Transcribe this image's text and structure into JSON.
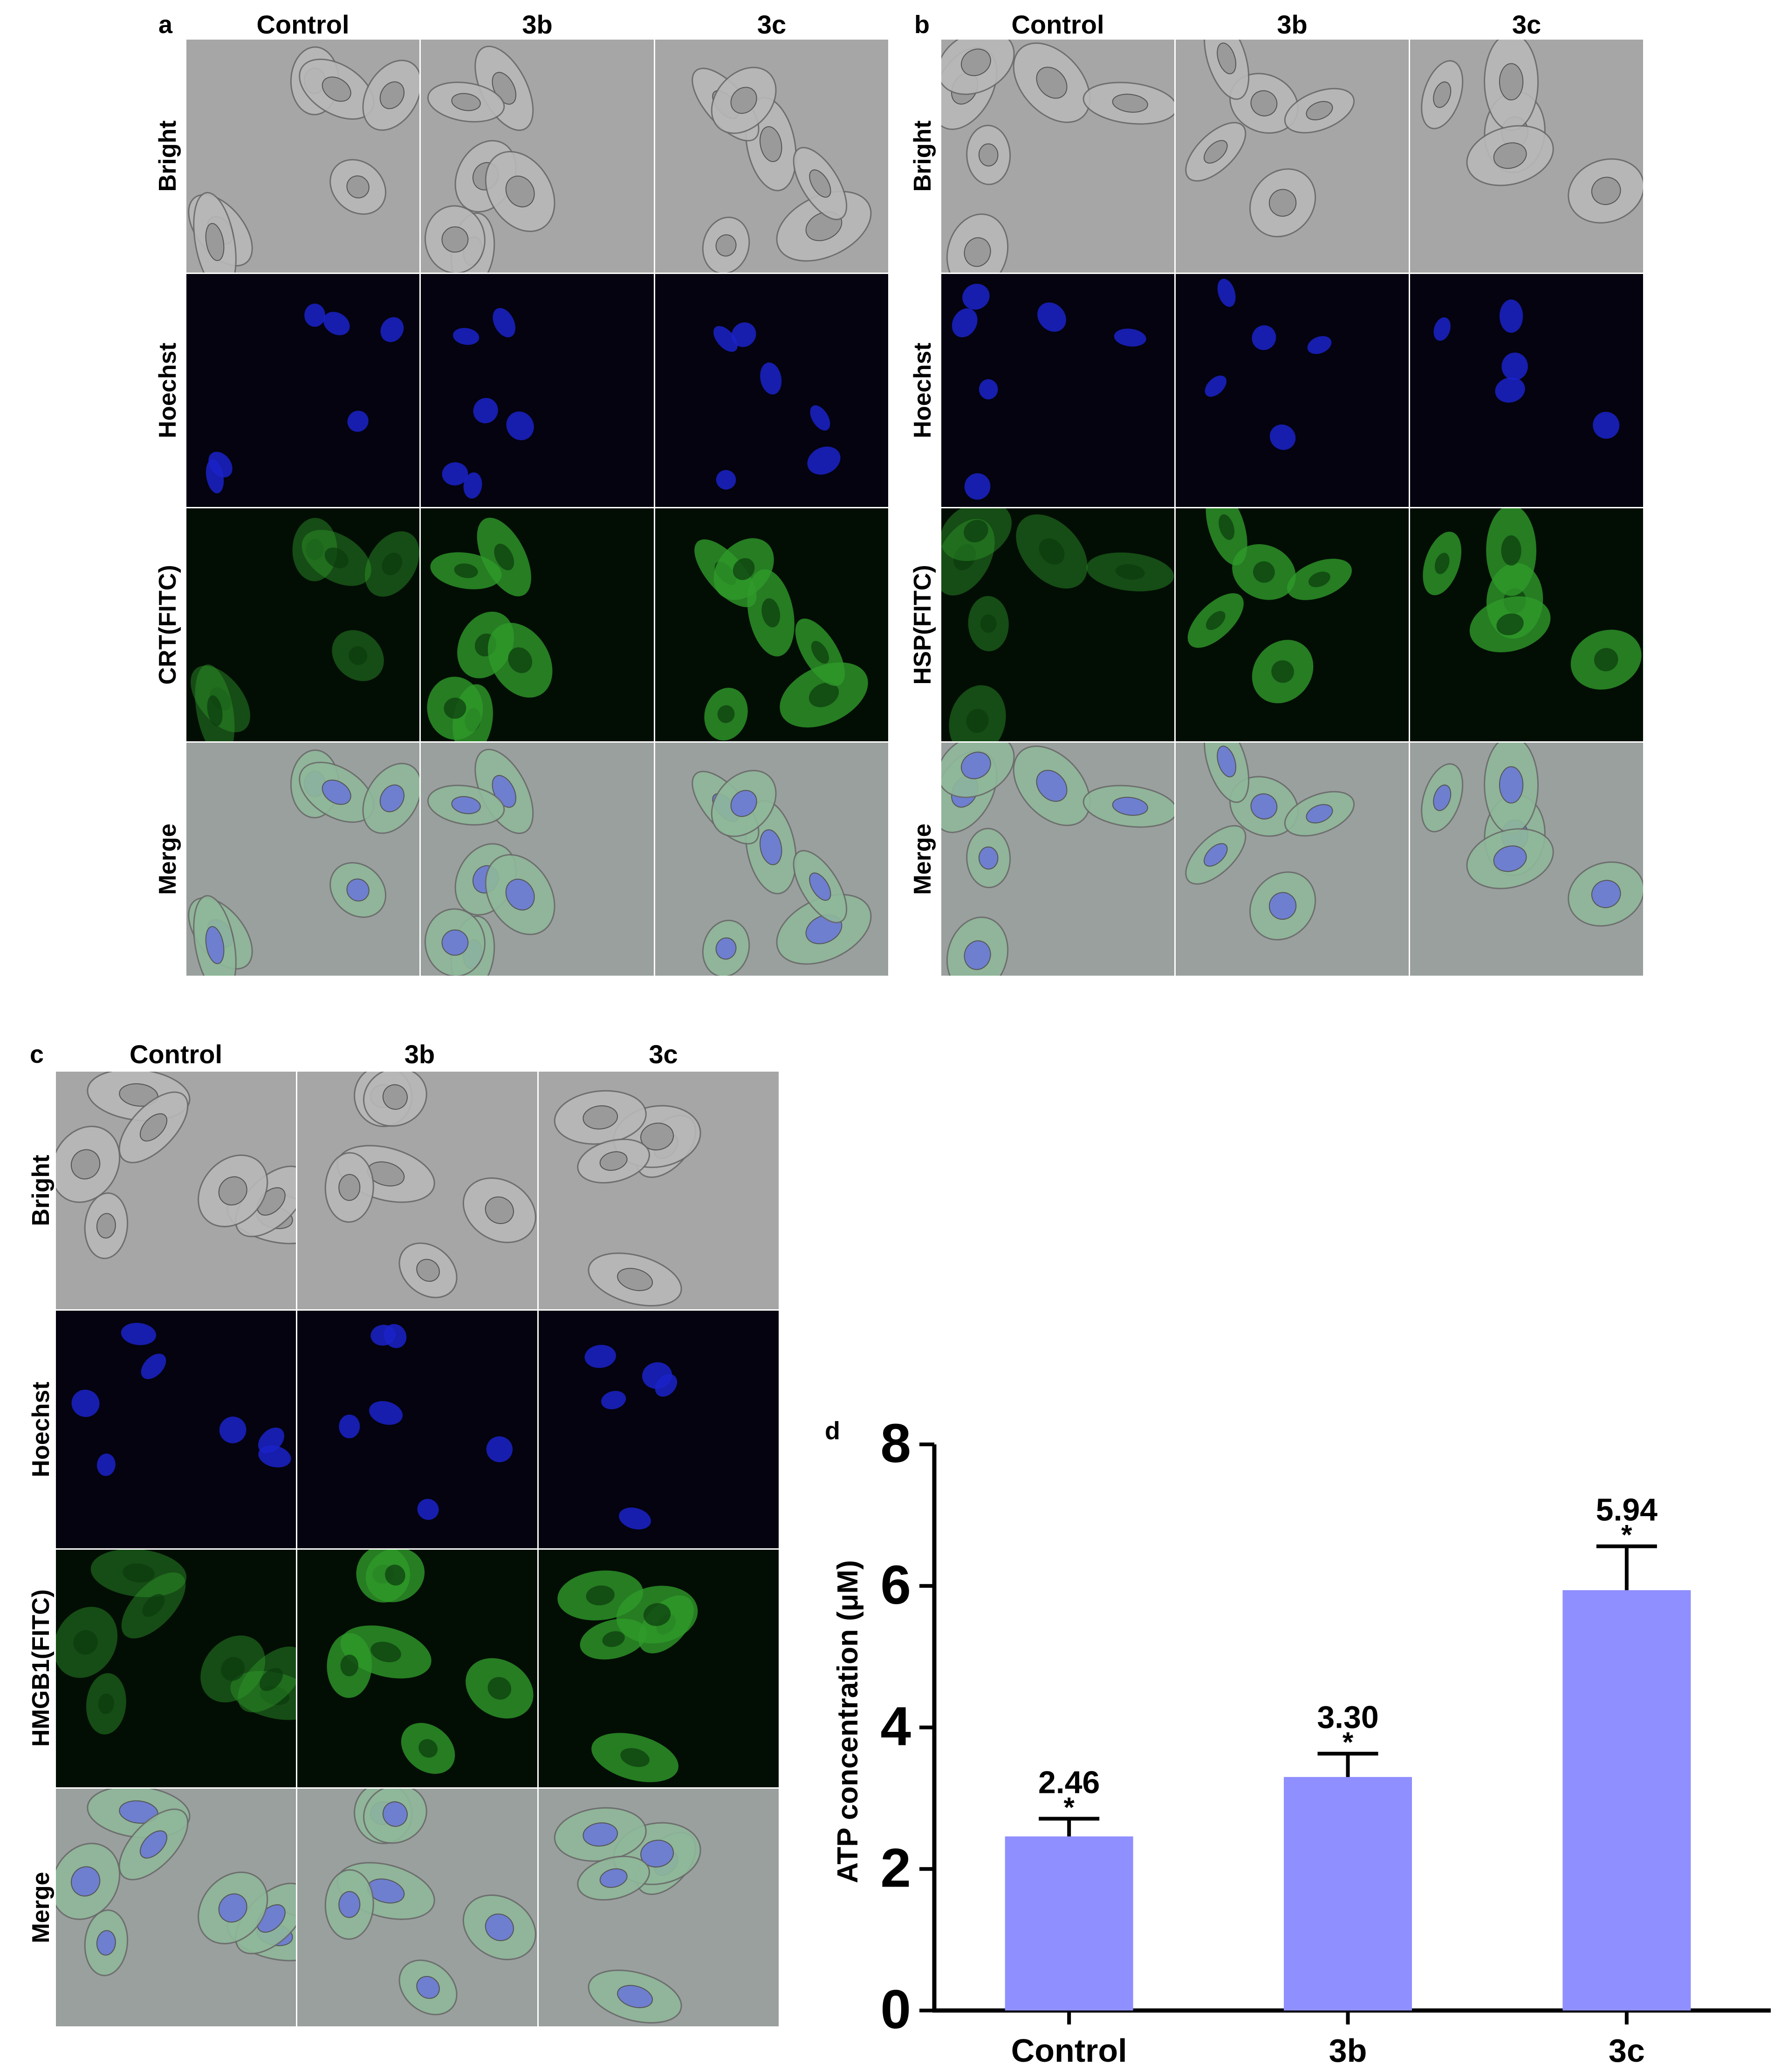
{
  "panels": {
    "a": {
      "letter": "a",
      "columns": [
        "Control",
        "3b",
        "3c"
      ],
      "rows": [
        "Bright",
        "Hoechst",
        "CRT(FITC)",
        "Merge"
      ]
    },
    "b": {
      "letter": "b",
      "columns": [
        "Control",
        "3b",
        "3c"
      ],
      "rows": [
        "Bright",
        "Hoechst",
        "HSP(FITC)",
        "Merge"
      ]
    },
    "c": {
      "letter": "c",
      "columns": [
        "Control",
        "3b",
        "3c"
      ],
      "rows": [
        "Bright",
        "Hoechst",
        "HMGB1(FITC)",
        "Merge"
      ]
    },
    "d": {
      "letter": "d"
    }
  },
  "colors": {
    "bright_bg": "#a6a6a6",
    "hoechst_bg": "#04030f",
    "hoechst_nucleus": "#1b22c8",
    "fitc_bg": "#020e04",
    "fitc_cell": "#2f9a2a",
    "merge_bg": "#9aa09e",
    "bar_fill": "#8f8fff"
  },
  "chart_data": {
    "type": "bar",
    "categories": [
      "Control",
      "3b",
      "3c"
    ],
    "values": [
      2.46,
      3.3,
      5.94
    ],
    "value_labels": [
      "2.46",
      "3.30",
      "5.94"
    ],
    "error": [
      0.25,
      0.33,
      0.62
    ],
    "significance": [
      "*",
      "*",
      "*"
    ],
    "ylabel": "ATP concentration (μM)",
    "xlabel": "",
    "ylim": [
      0,
      8
    ],
    "yticks": [
      "0",
      "2",
      "4",
      "6",
      "8"
    ],
    "grid": false,
    "bar_color": "#8f8fff"
  }
}
